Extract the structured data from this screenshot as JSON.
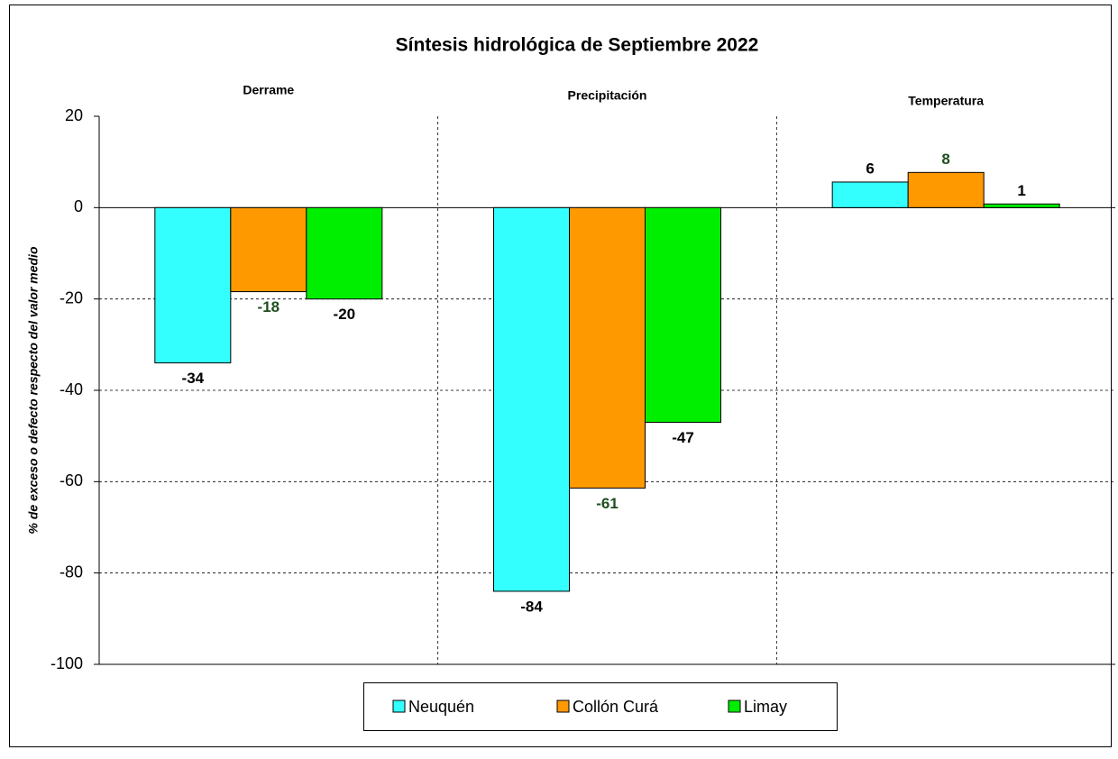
{
  "chart_data": {
    "type": "bar",
    "title": "Síntesis hidrológica de Septiembre 2022",
    "y_label": "% de exceso o defecto respecto del valor medio",
    "categories": [
      "Derrame",
      "Precipitación",
      "Temperatura"
    ],
    "series": [
      {
        "name": "Neuquén",
        "color": "#33ffff",
        "label_color": "#000000",
        "values": [
          -34,
          -84,
          5.6
        ],
        "value_labels": [
          "-34",
          "-84",
          "6"
        ]
      },
      {
        "name": "Collón Curá",
        "color": "#ff9900",
        "label_color": "#1f4e1f",
        "values": [
          -18.4,
          -61.4,
          7.7
        ],
        "value_labels": [
          "-18",
          "-61",
          "8"
        ]
      },
      {
        "name": "Limay",
        "color": "#00ee00",
        "label_color": "#000000",
        "values": [
          -20,
          -47,
          0.8
        ],
        "value_labels": [
          "-20",
          "-47",
          "1"
        ]
      }
    ],
    "ylim": [
      -100,
      20
    ],
    "yticks": [
      -100,
      -80,
      -60,
      -40,
      -20,
      0,
      20
    ],
    "grid": true
  }
}
